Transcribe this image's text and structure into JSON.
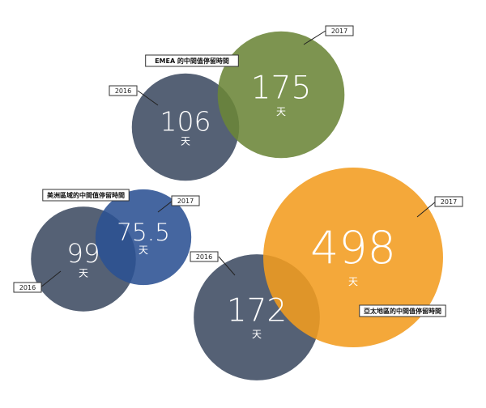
{
  "chart_data": [
    {
      "type": "bubble",
      "title": "EMEA 的中間值停留時間",
      "unit": "天",
      "series": [
        {
          "name": "2016",
          "color": "#3d4b62",
          "values": [
            106
          ]
        },
        {
          "name": "2017",
          "color": "#6b8538",
          "values": [
            175
          ]
        }
      ]
    },
    {
      "type": "bubble",
      "title": "美洲區域的中間值停留時間",
      "unit": "天",
      "series": [
        {
          "name": "2016",
          "color": "#3d4b62",
          "values": [
            99
          ]
        },
        {
          "name": "2017",
          "color": "#2b5193",
          "values": [
            75.5
          ]
        }
      ]
    },
    {
      "type": "bubble",
      "title": "亞太地區的中間值停留時間",
      "unit": "天",
      "series": [
        {
          "name": "2016",
          "color": "#3d4b62",
          "values": [
            172
          ]
        },
        {
          "name": "2017",
          "color": "#f39c1f",
          "values": [
            498
          ]
        }
      ]
    }
  ]
}
